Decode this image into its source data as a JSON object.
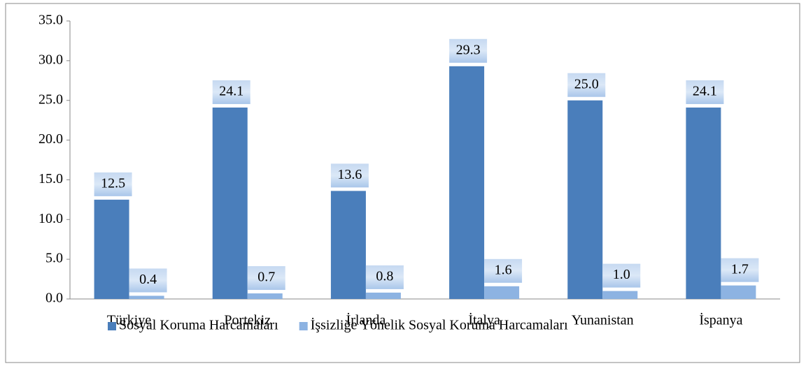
{
  "chart_data": {
    "type": "bar",
    "categories": [
      "Türkiye",
      "Portekiz",
      "İrlanda",
      "İtalya",
      "Yunanistan",
      "İspanya"
    ],
    "series": [
      {
        "name": "Sosyal Koruma Harcamaları",
        "color": "#4a7ebb",
        "values": [
          12.5,
          24.1,
          13.6,
          29.3,
          25.0,
          24.1
        ],
        "value_labels": [
          "12.5",
          "24.1",
          "13.6",
          "29.3",
          "25.0",
          "24.1"
        ]
      },
      {
        "name": "İşsizliğe Yönelik Sosyal Koruma Harcamaları",
        "color": "#8db3e2",
        "values": [
          0.4,
          0.7,
          0.8,
          1.6,
          1.0,
          1.7
        ],
        "value_labels": [
          "0.4",
          "0.7",
          "0.8",
          "1.6",
          "1.0",
          "1.7"
        ]
      }
    ],
    "ylim": [
      0,
      35
    ],
    "yticks": [
      {
        "value": 0,
        "label": "0.0"
      },
      {
        "value": 5,
        "label": "5.0"
      },
      {
        "value": 10,
        "label": "10.0"
      },
      {
        "value": 15,
        "label": "15.0"
      },
      {
        "value": 20,
        "label": "20.0"
      },
      {
        "value": 25,
        "label": "25.0"
      },
      {
        "value": 30,
        "label": "30.0"
      },
      {
        "value": 35,
        "label": "35.0"
      }
    ],
    "legend": "bottom"
  }
}
